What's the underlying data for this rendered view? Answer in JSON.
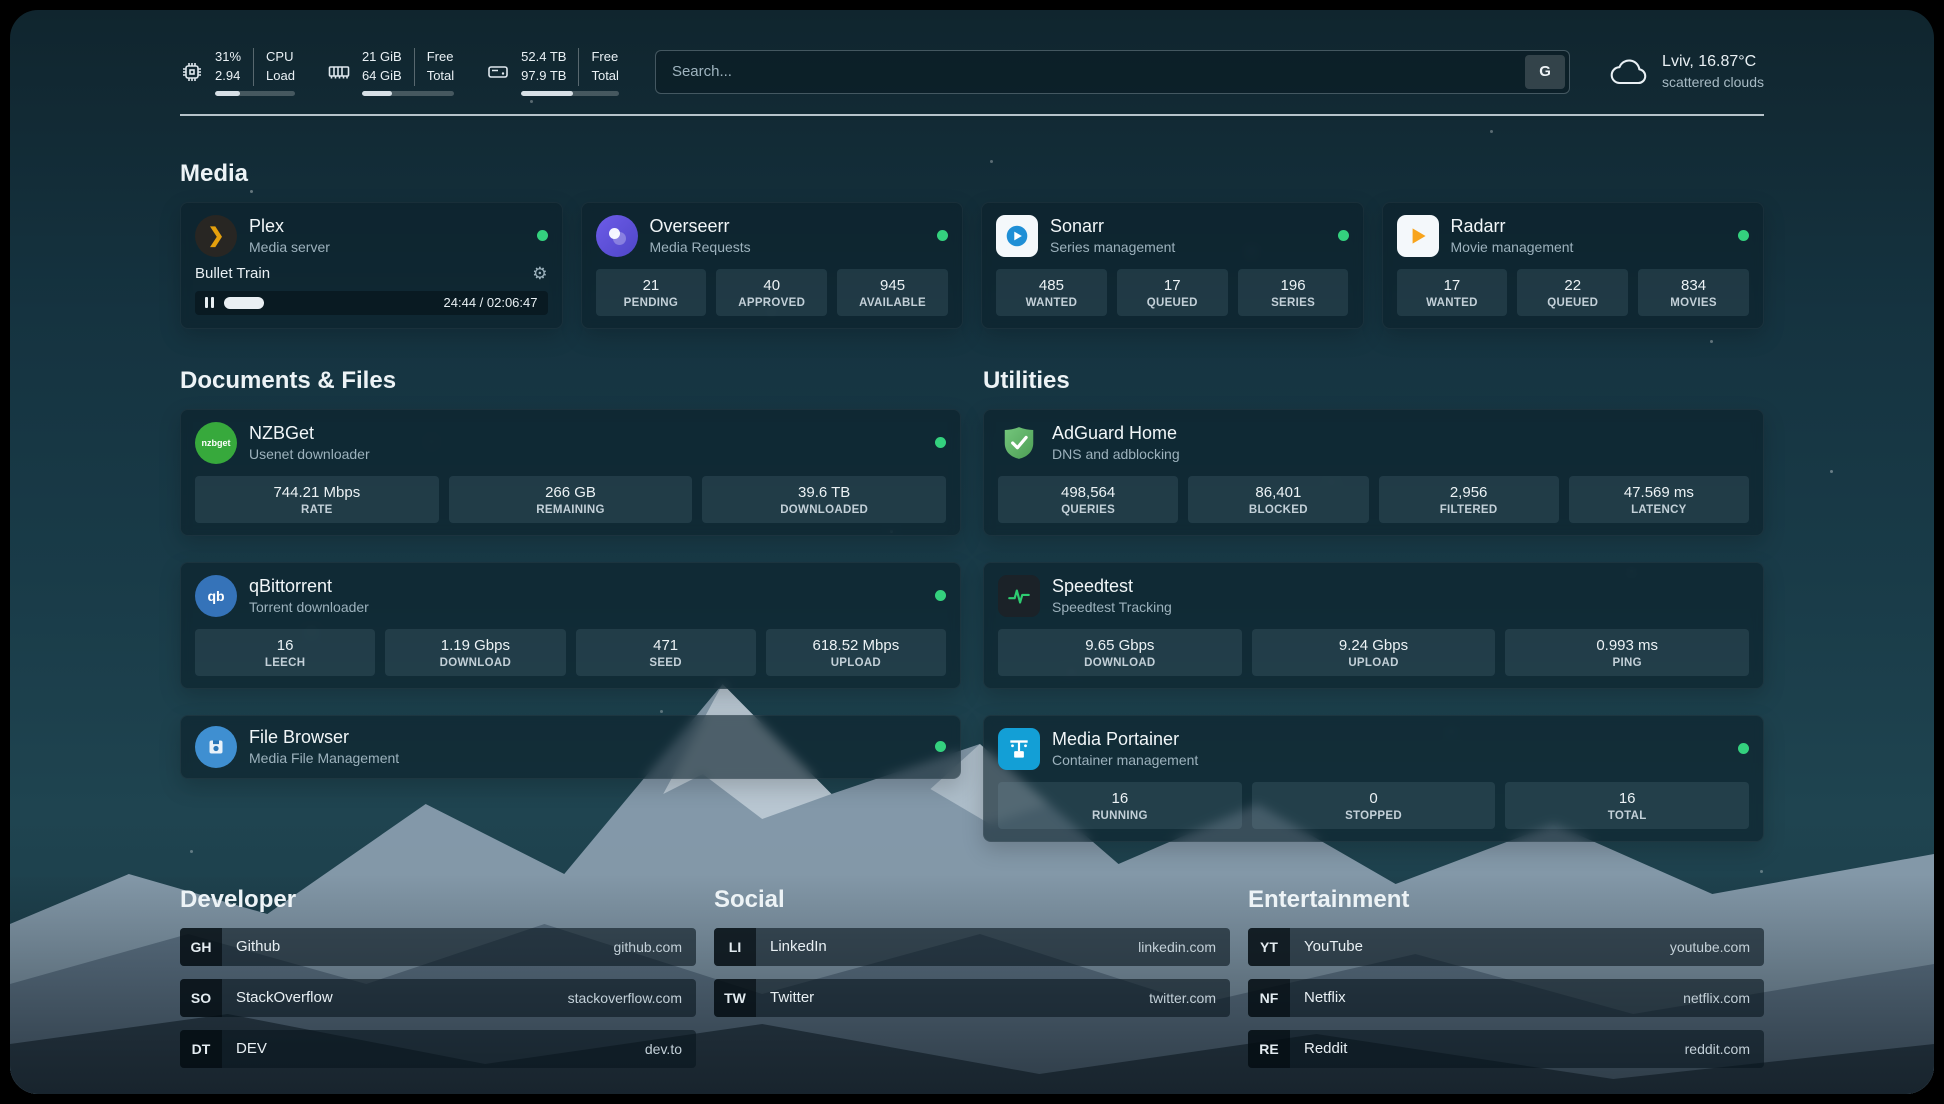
{
  "topbar": {
    "monitors": {
      "cpu": {
        "values": [
          "31%",
          "2.94"
        ],
        "labels": [
          "CPU",
          "Load"
        ],
        "progress": 31
      },
      "ram": {
        "values": [
          "21 GiB",
          "64 GiB"
        ],
        "labels": [
          "Free",
          "Total"
        ],
        "progress": 33
      },
      "disk": {
        "values": [
          "52.4 TB",
          "97.9 TB"
        ],
        "labels": [
          "Free",
          "Total"
        ],
        "progress": 53
      }
    },
    "search": {
      "placeholder": "Search...",
      "engine_button": "G"
    },
    "weather": {
      "location": "Lviv, 16.87°C",
      "condition": "scattered clouds"
    }
  },
  "media": {
    "title": "Media",
    "cards": [
      {
        "name": "Plex",
        "description": "Media server",
        "online": true,
        "now_playing": {
          "title": "Bullet Train",
          "time": "24:44 / 02:06:47",
          "progress": 19
        }
      },
      {
        "name": "Overseerr",
        "description": "Media Requests",
        "online": true,
        "stats": [
          {
            "value": "21",
            "label": "PENDING"
          },
          {
            "value": "40",
            "label": "APPROVED"
          },
          {
            "value": "945",
            "label": "AVAILABLE"
          }
        ]
      },
      {
        "name": "Sonarr",
        "description": "Series management",
        "online": true,
        "stats": [
          {
            "value": "485",
            "label": "WANTED"
          },
          {
            "value": "17",
            "label": "QUEUED"
          },
          {
            "value": "196",
            "label": "SERIES"
          }
        ]
      },
      {
        "name": "Radarr",
        "description": "Movie management",
        "online": true,
        "stats": [
          {
            "value": "17",
            "label": "WANTED"
          },
          {
            "value": "22",
            "label": "QUEUED"
          },
          {
            "value": "834",
            "label": "MOVIES"
          }
        ]
      }
    ]
  },
  "documents": {
    "title": "Documents & Files",
    "cards": [
      {
        "name": "NZBGet",
        "description": "Usenet downloader",
        "online": true,
        "stats": [
          {
            "value": "744.21 Mbps",
            "label": "RATE"
          },
          {
            "value": "266 GB",
            "label": "REMAINING"
          },
          {
            "value": "39.6 TB",
            "label": "DOWNLOADED"
          }
        ]
      },
      {
        "name": "qBittorrent",
        "description": "Torrent downloader",
        "online": true,
        "stats": [
          {
            "value": "16",
            "label": "LEECH"
          },
          {
            "value": "1.19 Gbps",
            "label": "DOWNLOAD"
          },
          {
            "value": "471",
            "label": "SEED"
          },
          {
            "value": "618.52 Mbps",
            "label": "UPLOAD"
          }
        ]
      },
      {
        "name": "File Browser",
        "description": "Media File Management",
        "online": true
      }
    ]
  },
  "utilities": {
    "title": "Utilities",
    "cards": [
      {
        "name": "AdGuard Home",
        "description": "DNS and adblocking",
        "stats": [
          {
            "value": "498,564",
            "label": "QUERIES"
          },
          {
            "value": "86,401",
            "label": "BLOCKED"
          },
          {
            "value": "2,956",
            "label": "FILTERED"
          },
          {
            "value": "47.569 ms",
            "label": "LATENCY"
          }
        ]
      },
      {
        "name": "Speedtest",
        "description": "Speedtest Tracking",
        "stats": [
          {
            "value": "9.65 Gbps",
            "label": "DOWNLOAD"
          },
          {
            "value": "9.24 Gbps",
            "label": "UPLOAD"
          },
          {
            "value": "0.993 ms",
            "label": "PING"
          }
        ]
      },
      {
        "name": "Media Portainer",
        "description": "Container management",
        "online": true,
        "stats": [
          {
            "value": "16",
            "label": "RUNNING"
          },
          {
            "value": "0",
            "label": "STOPPED"
          },
          {
            "value": "16",
            "label": "TOTAL"
          }
        ]
      }
    ]
  },
  "bookmarks": {
    "developer": {
      "title": "Developer",
      "links": [
        {
          "abbr": "GH",
          "name": "Github",
          "domain": "github.com"
        },
        {
          "abbr": "SO",
          "name": "StackOverflow",
          "domain": "stackoverflow.com"
        },
        {
          "abbr": "DT",
          "name": "DEV",
          "domain": "dev.to"
        }
      ]
    },
    "social": {
      "title": "Social",
      "links": [
        {
          "abbr": "LI",
          "name": "LinkedIn",
          "domain": "linkedin.com"
        },
        {
          "abbr": "TW",
          "name": "Twitter",
          "domain": "twitter.com"
        }
      ]
    },
    "entertainment": {
      "title": "Entertainment",
      "links": [
        {
          "abbr": "YT",
          "name": "YouTube",
          "domain": "youtube.com"
        },
        {
          "abbr": "NF",
          "name": "Netflix",
          "domain": "netflix.com"
        },
        {
          "abbr": "RE",
          "name": "Reddit",
          "domain": "reddit.com"
        }
      ]
    }
  },
  "glyphs": {
    "gear": "⚙",
    "plex_arrow": "❯",
    "nzbget_badge": "nzbget",
    "qbittorrent_badge": "qb"
  },
  "colors": {
    "status_online": "#34d17e",
    "plex_amber": "#e5a00d",
    "sonarr_blue": "#1f8fd6",
    "radarr_orange": "#f8a41c",
    "adguard_green": "#67b96d"
  }
}
